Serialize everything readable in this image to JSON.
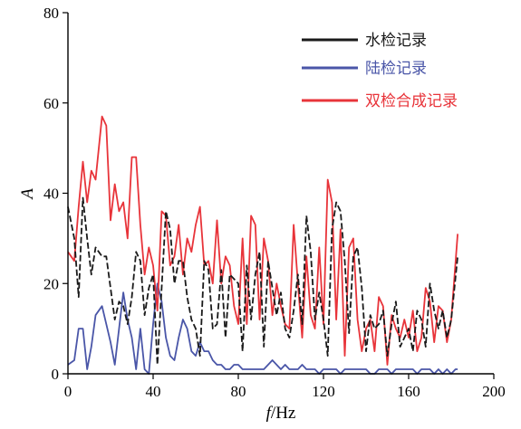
{
  "chart_data": {
    "type": "line",
    "xlabel_italic": "f",
    "xlabel_unit": "/Hz",
    "ylabel": "A",
    "xlim": [
      0,
      200
    ],
    "ylim": [
      0,
      80
    ],
    "x_ticks": [
      0,
      40,
      80,
      120,
      160,
      200
    ],
    "y_ticks": [
      0,
      20,
      40,
      60,
      80
    ],
    "grid": false,
    "legend_position": "top-right",
    "series": [
      {
        "name": "水检记录",
        "color": "#1a1a1a",
        "points": [
          [
            0,
            37
          ],
          [
            3,
            30
          ],
          [
            5,
            17
          ],
          [
            7,
            39
          ],
          [
            9,
            30
          ],
          [
            11,
            22
          ],
          [
            13,
            28
          ],
          [
            16,
            26
          ],
          [
            18,
            26
          ],
          [
            20,
            19
          ],
          [
            22,
            12
          ],
          [
            24,
            16
          ],
          [
            26,
            15
          ],
          [
            28,
            11
          ],
          [
            30,
            17
          ],
          [
            32,
            27
          ],
          [
            34,
            25
          ],
          [
            36,
            13
          ],
          [
            38,
            19
          ],
          [
            40,
            22
          ],
          [
            42,
            2
          ],
          [
            44,
            19
          ],
          [
            46,
            36
          ],
          [
            48,
            32
          ],
          [
            50,
            20
          ],
          [
            52,
            25
          ],
          [
            54,
            25
          ],
          [
            56,
            17
          ],
          [
            58,
            12
          ],
          [
            60,
            10
          ],
          [
            62,
            4
          ],
          [
            64,
            25
          ],
          [
            66,
            23
          ],
          [
            68,
            10
          ],
          [
            70,
            11
          ],
          [
            72,
            23
          ],
          [
            74,
            8
          ],
          [
            76,
            22
          ],
          [
            78,
            21
          ],
          [
            80,
            20
          ],
          [
            82,
            5
          ],
          [
            84,
            24
          ],
          [
            86,
            12
          ],
          [
            88,
            22
          ],
          [
            90,
            27
          ],
          [
            92,
            6
          ],
          [
            94,
            25
          ],
          [
            96,
            19
          ],
          [
            98,
            13
          ],
          [
            100,
            18
          ],
          [
            102,
            10
          ],
          [
            104,
            8
          ],
          [
            106,
            14
          ],
          [
            108,
            22
          ],
          [
            110,
            11
          ],
          [
            112,
            35
          ],
          [
            114,
            27
          ],
          [
            116,
            12
          ],
          [
            118,
            18
          ],
          [
            120,
            12
          ],
          [
            122,
            4
          ],
          [
            124,
            32
          ],
          [
            126,
            38
          ],
          [
            128,
            36
          ],
          [
            130,
            25
          ],
          [
            132,
            9
          ],
          [
            134,
            26
          ],
          [
            136,
            28
          ],
          [
            138,
            19
          ],
          [
            140,
            5
          ],
          [
            142,
            13
          ],
          [
            144,
            10
          ],
          [
            146,
            11
          ],
          [
            148,
            14
          ],
          [
            150,
            4
          ],
          [
            152,
            11
          ],
          [
            154,
            16
          ],
          [
            156,
            6
          ],
          [
            158,
            8
          ],
          [
            160,
            10
          ],
          [
            162,
            5
          ],
          [
            164,
            14
          ],
          [
            166,
            12
          ],
          [
            168,
            6
          ],
          [
            170,
            20
          ],
          [
            172,
            14
          ],
          [
            174,
            10
          ],
          [
            176,
            14
          ],
          [
            178,
            8
          ],
          [
            180,
            12
          ],
          [
            183,
            26
          ]
        ]
      },
      {
        "name": "陆检记录",
        "color": "#4a56a8",
        "points": [
          [
            0,
            2
          ],
          [
            3,
            3
          ],
          [
            5,
            10
          ],
          [
            7,
            10
          ],
          [
            9,
            1
          ],
          [
            11,
            6
          ],
          [
            13,
            13
          ],
          [
            16,
            15
          ],
          [
            18,
            11
          ],
          [
            20,
            7
          ],
          [
            22,
            2
          ],
          [
            24,
            10
          ],
          [
            26,
            18
          ],
          [
            28,
            12
          ],
          [
            30,
            8
          ],
          [
            32,
            1
          ],
          [
            34,
            10
          ],
          [
            36,
            1
          ],
          [
            38,
            0
          ],
          [
            40,
            11
          ],
          [
            42,
            20
          ],
          [
            44,
            16
          ],
          [
            46,
            8
          ],
          [
            48,
            4
          ],
          [
            50,
            3
          ],
          [
            52,
            8
          ],
          [
            54,
            12
          ],
          [
            56,
            10
          ],
          [
            58,
            5
          ],
          [
            60,
            4
          ],
          [
            62,
            7
          ],
          [
            64,
            5
          ],
          [
            66,
            5
          ],
          [
            68,
            3
          ],
          [
            70,
            2
          ],
          [
            72,
            2
          ],
          [
            74,
            1
          ],
          [
            76,
            1
          ],
          [
            78,
            2
          ],
          [
            80,
            2
          ],
          [
            82,
            1
          ],
          [
            84,
            1
          ],
          [
            86,
            1
          ],
          [
            88,
            1
          ],
          [
            90,
            1
          ],
          [
            92,
            1
          ],
          [
            94,
            2
          ],
          [
            96,
            3
          ],
          [
            98,
            2
          ],
          [
            100,
            1
          ],
          [
            102,
            2
          ],
          [
            104,
            1
          ],
          [
            106,
            1
          ],
          [
            108,
            1
          ],
          [
            110,
            2
          ],
          [
            112,
            1
          ],
          [
            114,
            1
          ],
          [
            116,
            1
          ],
          [
            118,
            0
          ],
          [
            120,
            1
          ],
          [
            122,
            1
          ],
          [
            124,
            1
          ],
          [
            126,
            1
          ],
          [
            128,
            0
          ],
          [
            130,
            1
          ],
          [
            132,
            1
          ],
          [
            134,
            1
          ],
          [
            136,
            1
          ],
          [
            138,
            1
          ],
          [
            140,
            1
          ],
          [
            142,
            0
          ],
          [
            144,
            0
          ],
          [
            146,
            1
          ],
          [
            148,
            1
          ],
          [
            150,
            1
          ],
          [
            152,
            0
          ],
          [
            154,
            1
          ],
          [
            156,
            1
          ],
          [
            158,
            1
          ],
          [
            160,
            1
          ],
          [
            162,
            1
          ],
          [
            164,
            0
          ],
          [
            166,
            1
          ],
          [
            168,
            1
          ],
          [
            170,
            1
          ],
          [
            172,
            0
          ],
          [
            174,
            1
          ],
          [
            176,
            0
          ],
          [
            178,
            1
          ],
          [
            180,
            0
          ],
          [
            182,
            1
          ],
          [
            183,
            1
          ]
        ]
      },
      {
        "name": "双检合成记录",
        "color": "#e8343a",
        "points": [
          [
            0,
            27
          ],
          [
            3,
            25
          ],
          [
            5,
            37
          ],
          [
            7,
            47
          ],
          [
            9,
            38
          ],
          [
            11,
            45
          ],
          [
            13,
            43
          ],
          [
            16,
            57
          ],
          [
            18,
            55
          ],
          [
            20,
            34
          ],
          [
            22,
            42
          ],
          [
            24,
            36
          ],
          [
            26,
            38
          ],
          [
            28,
            30
          ],
          [
            30,
            48
          ],
          [
            32,
            48
          ],
          [
            34,
            33
          ],
          [
            36,
            22
          ],
          [
            38,
            28
          ],
          [
            40,
            24
          ],
          [
            42,
            14
          ],
          [
            44,
            36
          ],
          [
            46,
            35
          ],
          [
            48,
            24
          ],
          [
            50,
            26
          ],
          [
            52,
            33
          ],
          [
            54,
            22
          ],
          [
            56,
            30
          ],
          [
            58,
            27
          ],
          [
            60,
            33
          ],
          [
            62,
            37
          ],
          [
            64,
            24
          ],
          [
            66,
            25
          ],
          [
            68,
            20
          ],
          [
            70,
            34
          ],
          [
            72,
            20
          ],
          [
            74,
            26
          ],
          [
            76,
            24
          ],
          [
            78,
            15
          ],
          [
            80,
            11
          ],
          [
            82,
            30
          ],
          [
            84,
            11
          ],
          [
            86,
            35
          ],
          [
            88,
            33
          ],
          [
            90,
            12
          ],
          [
            92,
            30
          ],
          [
            94,
            25
          ],
          [
            96,
            13
          ],
          [
            98,
            20
          ],
          [
            100,
            15
          ],
          [
            102,
            11
          ],
          [
            104,
            10
          ],
          [
            106,
            33
          ],
          [
            108,
            20
          ],
          [
            110,
            8
          ],
          [
            112,
            26
          ],
          [
            114,
            13
          ],
          [
            116,
            10
          ],
          [
            118,
            28
          ],
          [
            120,
            11
          ],
          [
            122,
            43
          ],
          [
            124,
            38
          ],
          [
            126,
            12
          ],
          [
            128,
            32
          ],
          [
            130,
            4
          ],
          [
            132,
            28
          ],
          [
            134,
            30
          ],
          [
            136,
            12
          ],
          [
            138,
            5
          ],
          [
            140,
            10
          ],
          [
            142,
            12
          ],
          [
            144,
            5
          ],
          [
            146,
            17
          ],
          [
            148,
            15
          ],
          [
            150,
            2
          ],
          [
            152,
            13
          ],
          [
            154,
            10
          ],
          [
            156,
            8
          ],
          [
            158,
            12
          ],
          [
            160,
            8
          ],
          [
            162,
            14
          ],
          [
            164,
            5
          ],
          [
            166,
            8
          ],
          [
            168,
            19
          ],
          [
            170,
            16
          ],
          [
            172,
            7
          ],
          [
            174,
            15
          ],
          [
            176,
            14
          ],
          [
            178,
            7
          ],
          [
            180,
            12
          ],
          [
            183,
            31
          ]
        ]
      }
    ]
  }
}
